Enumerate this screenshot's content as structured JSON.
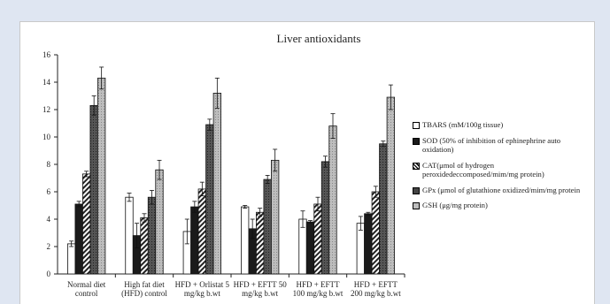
{
  "chart_data": {
    "type": "bar",
    "title": "Liver antioxidants",
    "xlabel": "",
    "ylabel": "",
    "ylim": [
      0,
      16
    ],
    "yticks": [
      0,
      2,
      4,
      6,
      8,
      10,
      12,
      14,
      16
    ],
    "grid": false,
    "legend_position": "right",
    "categories": [
      [
        "Normal diet",
        "control"
      ],
      [
        "High fat diet",
        "(HFD) control"
      ],
      [
        "HFD + Orlistat 5",
        "mg/kg b.wt"
      ],
      [
        "HFD + EFTT 50",
        "mg/kg b.wt"
      ],
      [
        "HFD + EFTT",
        "100 mg/kg b.wt"
      ],
      [
        "HFD + EFTT",
        "200 mg/kg b.wt"
      ]
    ],
    "series": [
      {
        "name": "TBARS (mM/100g tissue)",
        "legend_lines": [
          "TBARS (mM/100g tissue)"
        ],
        "style": "white",
        "values": [
          2.2,
          5.6,
          3.1,
          4.9,
          4.0,
          3.7
        ],
        "errors": [
          0.2,
          0.3,
          0.9,
          0.1,
          0.6,
          0.5
        ]
      },
      {
        "name": "SOD (50% of inhibition of ephinephrine auto oxidation)",
        "legend_lines": [
          "SOD (50% of inhibition of ephinephrine auto",
          "oxidation)"
        ],
        "style": "black",
        "values": [
          5.1,
          2.8,
          4.9,
          3.3,
          3.8,
          4.4
        ],
        "errors": [
          0.2,
          0.9,
          0.4,
          0.7,
          0.1,
          0.1
        ]
      },
      {
        "name": "CAT(μmol of hydrogen peroxidedeccomposed/mim/mg protein)",
        "legend_lines": [
          "CAT(μmol of hydrogen",
          "peroxidedeccomposed/mim/mg protein)"
        ],
        "style": "hatch",
        "values": [
          7.3,
          4.1,
          6.2,
          4.5,
          5.1,
          6.0
        ],
        "errors": [
          0.2,
          0.3,
          0.5,
          0.3,
          0.5,
          0.4
        ]
      },
      {
        "name": "GPx (μmol of glutathione oxidized/mim/mg protein",
        "legend_lines": [
          "GPx (μmol of glutathione oxidized/mim/mg protein"
        ],
        "style": "darkgrey",
        "values": [
          12.3,
          5.6,
          10.9,
          6.9,
          8.2,
          9.5
        ],
        "errors": [
          0.7,
          0.5,
          0.4,
          0.3,
          0.4,
          0.2
        ]
      },
      {
        "name": "GSH (μg/mg protein)",
        "legend_lines": [
          "GSH (μg/mg protein)"
        ],
        "style": "lightgrey",
        "values": [
          14.3,
          7.6,
          13.2,
          8.3,
          10.8,
          12.9
        ],
        "errors": [
          0.8,
          0.7,
          1.1,
          0.8,
          0.9,
          0.9
        ]
      }
    ]
  }
}
